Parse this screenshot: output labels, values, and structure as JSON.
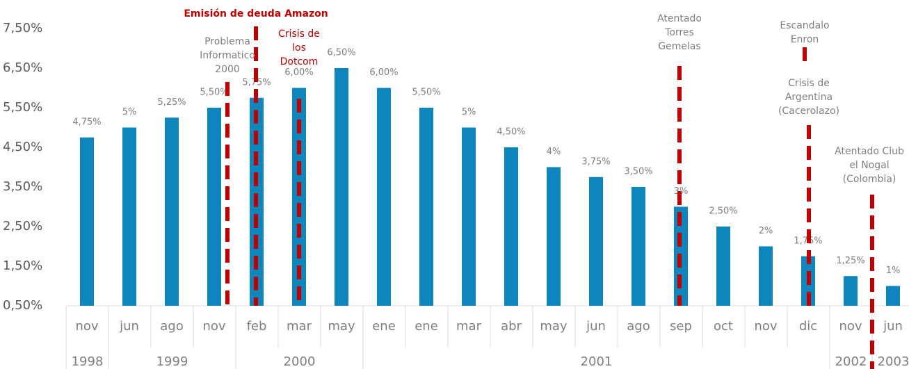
{
  "chart_data": {
    "type": "bar",
    "categories": [
      "nov",
      "jun",
      "ago",
      "nov",
      "feb",
      "mar",
      "may",
      "ene",
      "ene",
      "mar",
      "abr",
      "may",
      "jun",
      "ago",
      "sep",
      "oct",
      "nov",
      "dic",
      "nov",
      "jun"
    ],
    "years": [
      "1998",
      "1999",
      "2000",
      "2001",
      "2002",
      "2003"
    ],
    "values": [
      4.75,
      5,
      5.25,
      5.5,
      5.75,
      6,
      6.5,
      6,
      5.5,
      5,
      4.5,
      4,
      3.75,
      3.5,
      3,
      2.5,
      2,
      1.75,
      1.25,
      1
    ],
    "value_labels": [
      "4,75%",
      "5%",
      "5,25%",
      "5,50%",
      "5,75%",
      "6,00%",
      "6,50%",
      "6,00%",
      "5,50%",
      "5%",
      "4,50%",
      "4%",
      "3,75%",
      "3,50%",
      "3%",
      "2,50%",
      "2%",
      "1,75%",
      "1,25%",
      "1%"
    ],
    "color": "#0e86bd",
    "ylim": [
      0.5,
      7.5
    ],
    "yticks": [
      {
        "value": 0.5,
        "label": "0,50%"
      },
      {
        "value": 1.5,
        "label": "1,50%"
      },
      {
        "value": 2.5,
        "label": "2,50%"
      },
      {
        "value": 3.5,
        "label": "3,50%"
      },
      {
        "value": 4.5,
        "label": "4,50%"
      },
      {
        "value": 5.5,
        "label": "5,50%"
      },
      {
        "value": 6.5,
        "label": "6,50%"
      },
      {
        "value": 7.5,
        "label": "7,50%"
      }
    ],
    "annotations": [
      {
        "lines": [
          "Emisión de deuda Amazon"
        ],
        "color": "#c00000"
      },
      {
        "lines": [
          "Problema",
          "Informatico",
          "2000"
        ],
        "color": "#c00000"
      },
      {
        "lines": [
          "Crisis de",
          "los",
          "Dotcom"
        ],
        "color": "#c00000"
      },
      {
        "lines": [
          "Atentado",
          "Torres",
          "Gemelas"
        ],
        "color": "#c00000"
      },
      {
        "lines": [
          "Escandalo",
          "Enron"
        ],
        "color": "#c00000"
      },
      {
        "lines": [
          "Crisis de",
          "Argentina",
          "(Cacerolazo)"
        ],
        "color": "#c00000"
      },
      {
        "lines": [
          "Atentado Club",
          "el Nogal",
          "(Colombia)"
        ],
        "color": "#c00000"
      }
    ]
  }
}
